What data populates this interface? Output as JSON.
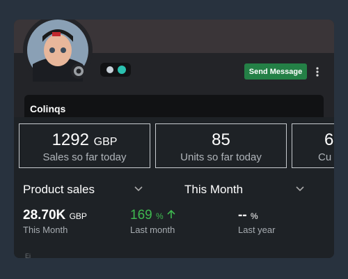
{
  "profile": {
    "button": "Send Message",
    "username": "Colinqs"
  },
  "stats": [
    {
      "value": "1292",
      "unit": "GBP",
      "label": "Sales so far today"
    },
    {
      "value": "85",
      "label": "Units so far today"
    },
    {
      "value": "6",
      "label": "Cu"
    }
  ],
  "filters": {
    "metric": "Product sales",
    "period": "This Month"
  },
  "summary": [
    {
      "value": "28.70K",
      "unit": "GBP",
      "label": "This Month"
    },
    {
      "value": "169",
      "unit": "%",
      "label": "Last month"
    },
    {
      "value": "--",
      "unit": "%",
      "label": "Last year"
    }
  ],
  "footer": "Ei"
}
